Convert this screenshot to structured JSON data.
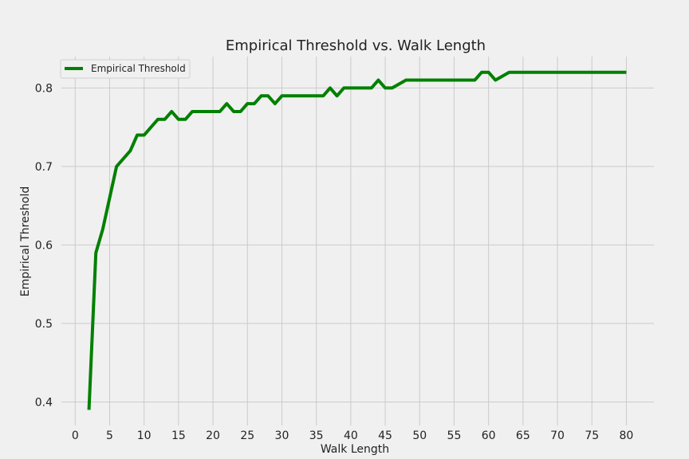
{
  "chart_data": {
    "type": "line",
    "title": "Empirical Threshold vs. Walk Length",
    "xlabel": "Walk Length",
    "ylabel": "Empirical Threshold",
    "xlim": [
      -2,
      84
    ],
    "ylim": [
      0.37,
      0.84
    ],
    "xticks": [
      0,
      5,
      10,
      15,
      20,
      25,
      30,
      35,
      40,
      45,
      50,
      55,
      60,
      65,
      70,
      75,
      80
    ],
    "yticks": [
      0.4,
      0.5,
      0.6,
      0.7,
      0.8
    ],
    "ytick_labels": [
      "0.4",
      "0.5",
      "0.6",
      "0.7",
      "0.8"
    ],
    "grid": true,
    "legend_position": "top-left",
    "series": [
      {
        "name": "Empirical Threshold",
        "color": "#008000",
        "x": [
          2,
          3,
          4,
          5,
          6,
          7,
          8,
          9,
          10,
          11,
          12,
          13,
          14,
          15,
          16,
          17,
          18,
          19,
          20,
          21,
          22,
          23,
          24,
          25,
          26,
          27,
          28,
          29,
          30,
          31,
          32,
          33,
          34,
          35,
          36,
          37,
          38,
          39,
          40,
          41,
          42,
          43,
          44,
          45,
          46,
          47,
          48,
          49,
          50,
          51,
          52,
          53,
          54,
          55,
          56,
          57,
          58,
          59,
          60,
          61,
          62,
          63,
          64,
          65,
          66,
          67,
          68,
          69,
          70,
          71,
          72,
          73,
          74,
          75,
          76,
          77,
          78,
          79,
          80
        ],
        "y": [
          0.39,
          0.59,
          0.62,
          0.66,
          0.7,
          0.71,
          0.72,
          0.74,
          0.74,
          0.75,
          0.76,
          0.76,
          0.77,
          0.76,
          0.76,
          0.77,
          0.77,
          0.77,
          0.77,
          0.77,
          0.78,
          0.77,
          0.77,
          0.78,
          0.78,
          0.79,
          0.79,
          0.78,
          0.79,
          0.79,
          0.79,
          0.79,
          0.79,
          0.79,
          0.79,
          0.8,
          0.79,
          0.8,
          0.8,
          0.8,
          0.8,
          0.8,
          0.81,
          0.8,
          0.8,
          0.805,
          0.81,
          0.81,
          0.81,
          0.81,
          0.81,
          0.81,
          0.81,
          0.81,
          0.81,
          0.81,
          0.81,
          0.82,
          0.82,
          0.81,
          0.815,
          0.82,
          0.82,
          0.82,
          0.82,
          0.82,
          0.82,
          0.82,
          0.82,
          0.82,
          0.82,
          0.82,
          0.82,
          0.82,
          0.82,
          0.82,
          0.82,
          0.82,
          0.82
        ]
      }
    ]
  }
}
